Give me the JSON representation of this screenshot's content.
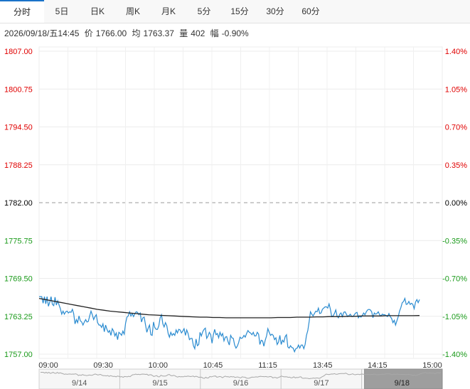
{
  "tabs": [
    {
      "label": "分时",
      "active": true
    },
    {
      "label": "5日",
      "active": false
    },
    {
      "label": "日K",
      "active": false
    },
    {
      "label": "周K",
      "active": false
    },
    {
      "label": "月K",
      "active": false
    },
    {
      "label": "5分",
      "active": false
    },
    {
      "label": "15分",
      "active": false
    },
    {
      "label": "30分",
      "active": false
    },
    {
      "label": "60分",
      "active": false
    }
  ],
  "info": {
    "datetime": "2026/09/18/五14:45",
    "price_label": "价",
    "price": "1766.00",
    "avg_label": "均",
    "avg": "1763.37",
    "vol_label": "量",
    "vol": "402",
    "chg_label": "幅",
    "chg": "-0.90%"
  },
  "colors": {
    "up": "#e00000",
    "down": "#1a9a1a",
    "flat": "#000000",
    "price_line": "#2a8bd0",
    "avg_line": "#222222",
    "accent": "#1a73c9"
  },
  "chart_data": {
    "type": "line",
    "prev_close": 1782.0,
    "ylim": [
      1757.0,
      1807.0
    ],
    "y_ticks_left": [
      "1807.00",
      "1800.75",
      "1794.50",
      "1788.25",
      "1782.00",
      "1775.75",
      "1769.50",
      "1763.25",
      "1757.00"
    ],
    "y_ticks_right": [
      "1.40%",
      "1.05%",
      "0.70%",
      "0.35%",
      "0.00%",
      "-0.35%",
      "-0.70%",
      "-1.05%",
      "-1.40%"
    ],
    "x_ticks": [
      "09:00",
      "09:30",
      "10:00",
      "10:45",
      "11:15",
      "13:45",
      "14:15",
      "15:00"
    ],
    "session_minutes": 315,
    "series": [
      {
        "key": "price",
        "values": [
          1766.5,
          1766.5,
          1766.5,
          1765.4,
          1766.5,
          1765.3,
          1766.5,
          1764.9,
          1765.6,
          1766.5,
          1765.2,
          1765.0,
          1766.4,
          1765.1,
          1765.8,
          1765.1,
          1764.5,
          1763.6,
          1764.1,
          1763.6,
          1764.0,
          1764.1,
          1763.8,
          1764.0,
          1763.9,
          1764.4,
          1763.7,
          1762.0,
          1762.7,
          1762.2,
          1763.3,
          1762.5,
          1762.3,
          1761.8,
          1762.3,
          1762.7,
          1762.3,
          1762.4,
          1763.3,
          1764.1,
          1763.5,
          1762.7,
          1763.2,
          1763.5,
          1762.2,
          1761.8,
          1761.8,
          1761.4,
          1762.0,
          1760.7,
          1761.8,
          1761.1,
          1760.6,
          1760.9,
          1760.1,
          1761.2,
          1760.8,
          1760.0,
          1760.5,
          1759.4,
          1760.6,
          1760.4,
          1760.1,
          1760.8,
          1760.3,
          1762.1,
          1763.1,
          1763.3,
          1764.0,
          1763.3,
          1763.7,
          1763.2,
          1763.7,
          1764.0,
          1763.9,
          1763.5,
          1763.8,
          1762.3,
          1763.0,
          1763.1,
          1761.8,
          1760.6,
          1761.3,
          1761.8,
          1760.2,
          1760.1,
          1762.3,
          1761.4,
          1761.1,
          1761.1,
          1761.7,
          1763.0,
          1763.5,
          1762.0,
          1761.5,
          1762.2,
          1761.7,
          1760.4,
          1759.8,
          1760.6,
          1760.1,
          1760.4,
          1760.1,
          1761.0,
          1760.5,
          1761.1,
          1761.0,
          1760.5,
          1760.8,
          1761.2,
          1760.1,
          1761.0,
          1760.4,
          1759.4,
          1759.6,
          1759.6,
          1758.4,
          1757.9,
          1759.5,
          1758.4,
          1758.6,
          1760.6,
          1760.0,
          1760.7,
          1761.1,
          1761.3,
          1759.6,
          1760.0,
          1760.6,
          1760.2,
          1758.8,
          1760.2,
          1761.1,
          1760.2,
          1760.4,
          1759.7,
          1760.6,
          1760.0,
          1760.4,
          1759.2,
          1759.8,
          1759.9,
          1759.1,
          1758.5,
          1760.1,
          1759.7,
          1759.6,
          1758.5,
          1758.0,
          1758.3,
          1758.9,
          1759.8,
          1759.6,
          1759.7,
          1760.1,
          1759.8,
          1760.4,
          1760.9,
          1760.6,
          1760.5,
          1760.2,
          1760.6,
          1760.0,
          1760.0,
          1760.6,
          1760.3,
          1758.6,
          1759.3,
          1759.2,
          1758.3,
          1759.3,
          1760.0,
          1761.2,
          1760.6,
          1760.1,
          1760.3,
          1760.1,
          1759.4,
          1759.7,
          1758.6,
          1759.0,
          1760.1,
          1758.6,
          1759.3,
          1759.0,
          1759.9,
          1760.2,
          1758.2,
          1758.0,
          1758.4,
          1758.1,
          1758.0,
          1757.4,
          1757.9,
          1758.0,
          1758.5,
          1758.0,
          1758.5,
          1758.5,
          1757.9,
          1758.6,
          1760.1,
          1760.9,
          1762.3,
          1764.0,
          1763.6,
          1763.3,
          1763.7,
          1764.1,
          1764.0,
          1764.6,
          1763.7,
          1763.8,
          1764.4,
          1764.6,
          1764.8,
          1764.8,
          1764.6,
          1765.3,
          1764.4,
          1763.2,
          1763.3,
          1763.7,
          1764.3,
          1763.3,
          1763.0,
          1763.6,
          1763.8,
          1763.2,
          1763.9,
          1764.0,
          1763.6,
          1763.2,
          1763.4,
          1763.6,
          1763.2,
          1763.2,
          1763.5,
          1763.8,
          1763.9,
          1763.0,
          1763.3,
          1763.1,
          1763.4,
          1763.8,
          1763.5,
          1764.0,
          1764.3,
          1764.4,
          1764.3,
          1764.0,
          1763.0,
          1763.8,
          1763.6,
          1763.7,
          1764.0,
          1763.5,
          1763.3,
          1763.6,
          1763.5,
          1763.5,
          1763.3,
          1763.2,
          1763.7,
          1763.2,
          1762.9,
          1762.2,
          1762.6,
          1761.8,
          1762.5,
          1763.2,
          1764.1,
          1764.7,
          1765.5,
          1765.7,
          1766.2,
          1765.2,
          1765.3,
          1765.7,
          1765.2,
          1765.4,
          1765.2,
          1764.5,
          1765.6,
          1766.0,
          1765.5,
          1766.0
        ],
        "color": "#2a8bd0"
      },
      {
        "key": "average",
        "values": [
          1766.2,
          1766.0,
          1765.8,
          1765.6,
          1765.4,
          1765.2,
          1765.0,
          1764.8,
          1764.6,
          1764.4,
          1764.25,
          1764.1,
          1764.0,
          1763.9,
          1763.8,
          1763.7,
          1763.6,
          1763.5,
          1763.45,
          1763.4,
          1763.35,
          1763.3,
          1763.25,
          1763.2,
          1763.15,
          1763.1,
          1763.1,
          1763.05,
          1763.05,
          1763.0,
          1763.0,
          1763.0,
          1763.0,
          1763.0,
          1763.0,
          1763.0,
          1763.0,
          1763.05,
          1763.05,
          1763.05,
          1763.1,
          1763.1,
          1763.1,
          1763.15,
          1763.15,
          1763.2,
          1763.2,
          1763.2,
          1763.25,
          1763.25,
          1763.3,
          1763.3,
          1763.3,
          1763.3,
          1763.35,
          1763.35,
          1763.35,
          1763.35,
          1763.35,
          1763.37
        ],
        "color": "#222222"
      }
    ],
    "overview_dates": [
      "9/14",
      "9/15",
      "9/16",
      "9/17",
      "9/18"
    ],
    "overview_selected": "9/18"
  }
}
